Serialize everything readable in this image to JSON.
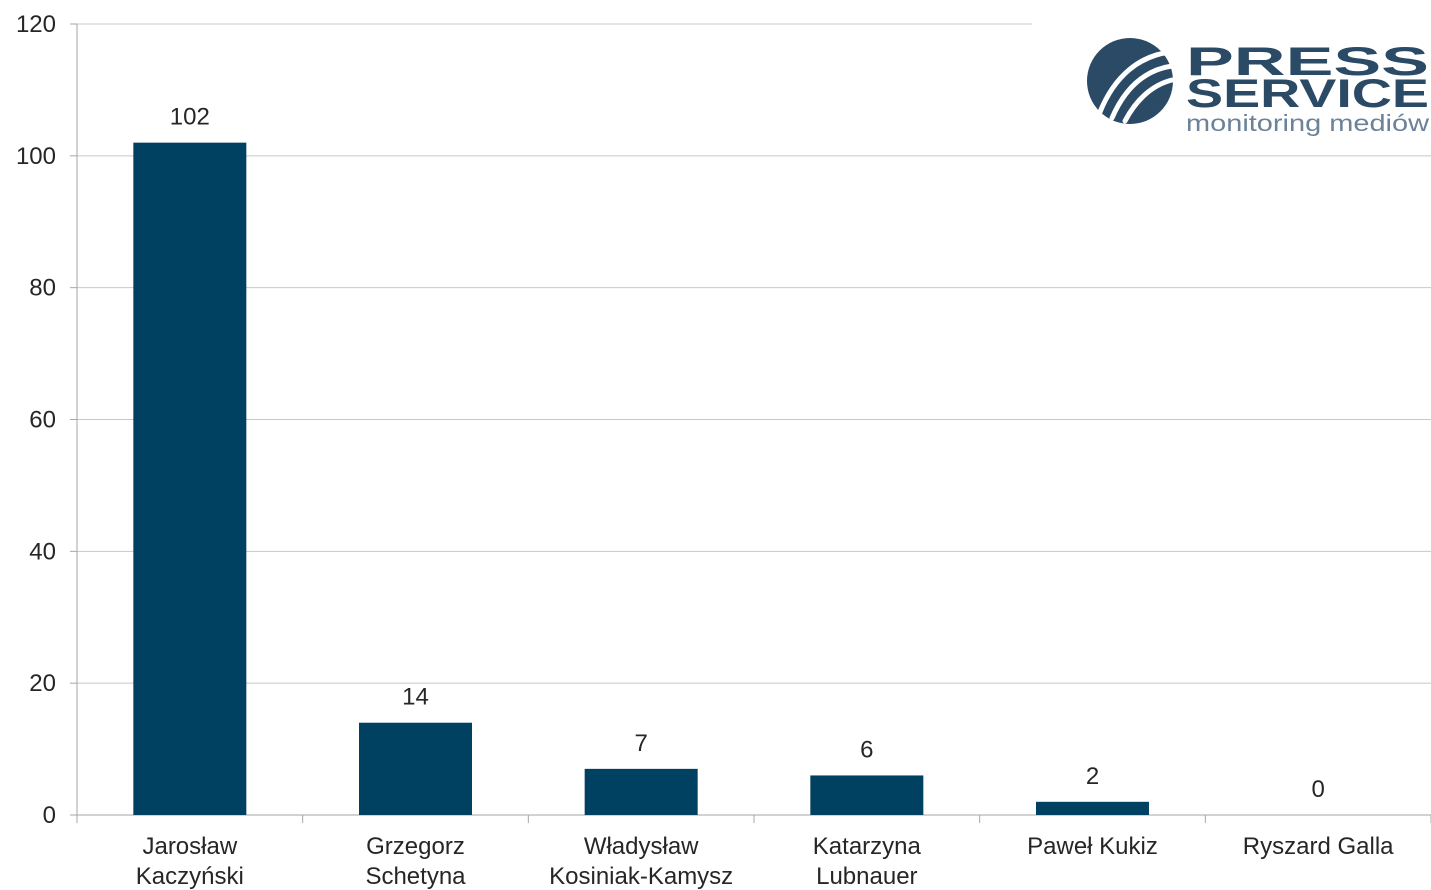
{
  "chart_data": {
    "type": "bar",
    "categories": [
      [
        "Jarosław",
        "Kaczyński"
      ],
      [
        "Grzegorz",
        "Schetyna"
      ],
      [
        "Władysław",
        "Kosiniak-Kamysz"
      ],
      [
        "Katarzyna",
        "Lubnauer"
      ],
      [
        "Paweł Kukiz"
      ],
      [
        "Ryszard Galla"
      ]
    ],
    "values": [
      102,
      14,
      7,
      6,
      2,
      0
    ],
    "data_labels": [
      "102",
      "14",
      "7",
      "6",
      "2",
      "0"
    ],
    "ylim": [
      0,
      120
    ],
    "yticks": [
      0,
      20,
      40,
      60,
      80,
      100,
      120
    ],
    "ytick_labels": [
      "0",
      "20",
      "40",
      "60",
      "80",
      "100",
      "120"
    ],
    "grid": true,
    "colors": {
      "bar": "#004060",
      "grid": "#c8c8c8",
      "axis": "#a6a6a6",
      "text": "#262626"
    }
  },
  "logo": {
    "title_line1": "PRESS",
    "title_line2": "SERVICE",
    "subtitle": "monitoring mediów",
    "colors": {
      "primary": "#2b4a66",
      "secondary": "#6b8299"
    }
  }
}
